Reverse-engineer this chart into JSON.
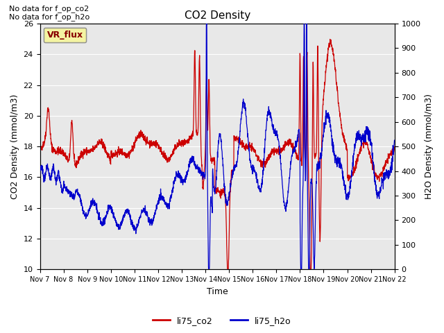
{
  "title": "CO2 Density",
  "xlabel": "Time",
  "ylabel_left": "CO2 Density (mmol/m3)",
  "ylabel_right": "H2O Density (mmol/m3)",
  "top_text_line1": "No data for f_op_co2",
  "top_text_line2": "No data for f_op_h2o",
  "legend_box_label": "VR_flux",
  "legend_entries": [
    "li75_co2",
    "li75_h2o"
  ],
  "co2_color": "#cc0000",
  "h2o_color": "#0000cc",
  "background_color": "#e8e8e8",
  "ylim_left": [
    10,
    26
  ],
  "ylim_right": [
    0,
    1000
  ],
  "yticks_left": [
    10,
    12,
    14,
    16,
    18,
    20,
    22,
    24,
    26
  ],
  "yticks_right": [
    0,
    100,
    200,
    300,
    400,
    500,
    600,
    700,
    800,
    900,
    1000
  ],
  "xtick_labels": [
    "Nov 7",
    "Nov 8",
    "Nov 9",
    "Nov 10",
    "Nov 11",
    "Nov 12",
    "Nov 13",
    "Nov 14",
    "Nov 15",
    "Nov 16",
    "Nov 17",
    "Nov 18",
    "Nov 19",
    "Nov 20",
    "Nov 21",
    "Nov 22"
  ],
  "n_days": 15,
  "points_per_day": 144
}
